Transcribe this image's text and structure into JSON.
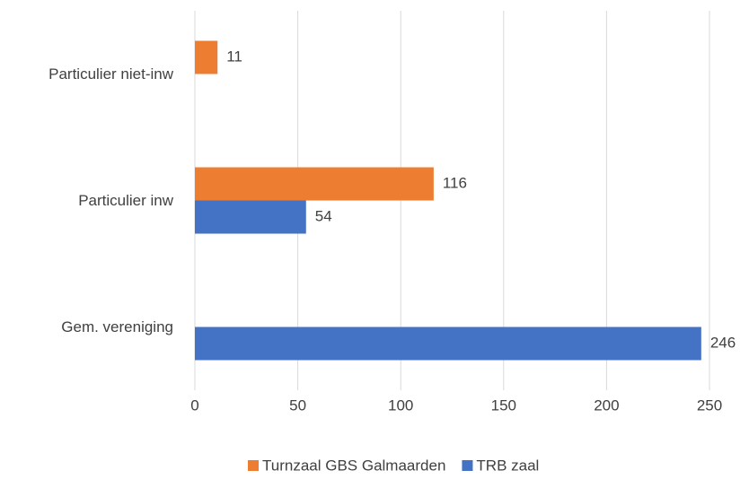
{
  "chart_data": {
    "type": "barh",
    "categories": [
      "Particulier niet-inw",
      "Particulier inw",
      "Gem. vereniging"
    ],
    "series": [
      {
        "name": "Turnzaal GBS Galmaarden",
        "color": "#ed7d31",
        "values": [
          11,
          116,
          null
        ]
      },
      {
        "name": "TRB zaal",
        "color": "#4472c4",
        "values": [
          null,
          54,
          246
        ]
      }
    ],
    "xlim": [
      0,
      250
    ],
    "xticks": [
      0,
      50,
      100,
      150,
      200,
      250
    ],
    "grid": true,
    "legend": "bottom"
  }
}
